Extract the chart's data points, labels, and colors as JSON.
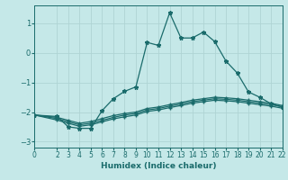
{
  "xlabel": "Humidex (Indice chaleur)",
  "background_color": "#c5e8e8",
  "grid_color": "#afd4d4",
  "line_color": "#1a6b6b",
  "xlim": [
    0,
    22
  ],
  "ylim": [
    -3.2,
    1.6
  ],
  "xticks": [
    0,
    2,
    3,
    4,
    5,
    6,
    7,
    8,
    9,
    10,
    11,
    12,
    13,
    14,
    15,
    16,
    17,
    18,
    19,
    20,
    21,
    22
  ],
  "yticks": [
    -3,
    -2,
    -1,
    0,
    1
  ],
  "line1_x": [
    0,
    2,
    3,
    4,
    5,
    6,
    7,
    8,
    9,
    10,
    11,
    12,
    13,
    14,
    15,
    16,
    17,
    18,
    19,
    20,
    21,
    22
  ],
  "line1_y": [
    -2.1,
    -2.15,
    -2.5,
    -2.55,
    -2.55,
    -1.95,
    -1.55,
    -1.3,
    -1.15,
    0.35,
    0.25,
    1.35,
    0.5,
    0.5,
    0.7,
    0.38,
    -0.28,
    -0.68,
    -1.32,
    -1.5,
    -1.72,
    -1.83
  ],
  "line2_x": [
    0,
    2,
    3,
    4,
    5,
    6,
    7,
    8,
    9,
    10,
    11,
    12,
    13,
    14,
    15,
    16,
    17,
    18,
    19,
    20,
    21,
    22
  ],
  "line2_y": [
    -2.1,
    -2.18,
    -2.28,
    -2.38,
    -2.32,
    -2.22,
    -2.12,
    -2.05,
    -2.0,
    -1.88,
    -1.83,
    -1.75,
    -1.68,
    -1.6,
    -1.55,
    -1.5,
    -1.52,
    -1.55,
    -1.6,
    -1.65,
    -1.7,
    -1.78
  ],
  "line3_x": [
    0,
    2,
    3,
    4,
    5,
    6,
    7,
    8,
    9,
    10,
    11,
    12,
    13,
    14,
    15,
    16,
    17,
    18,
    19,
    20,
    21,
    22
  ],
  "line3_y": [
    -2.1,
    -2.22,
    -2.33,
    -2.43,
    -2.38,
    -2.28,
    -2.18,
    -2.1,
    -2.05,
    -1.93,
    -1.88,
    -1.8,
    -1.73,
    -1.65,
    -1.6,
    -1.55,
    -1.57,
    -1.6,
    -1.65,
    -1.7,
    -1.75,
    -1.82
  ],
  "line4_x": [
    0,
    2,
    3,
    4,
    5,
    6,
    7,
    8,
    9,
    10,
    11,
    12,
    13,
    14,
    15,
    16,
    17,
    18,
    19,
    20,
    21,
    22
  ],
  "line4_y": [
    -2.1,
    -2.27,
    -2.38,
    -2.48,
    -2.43,
    -2.33,
    -2.23,
    -2.16,
    -2.1,
    -1.98,
    -1.93,
    -1.85,
    -1.78,
    -1.7,
    -1.65,
    -1.6,
    -1.62,
    -1.65,
    -1.7,
    -1.75,
    -1.8,
    -1.87
  ]
}
